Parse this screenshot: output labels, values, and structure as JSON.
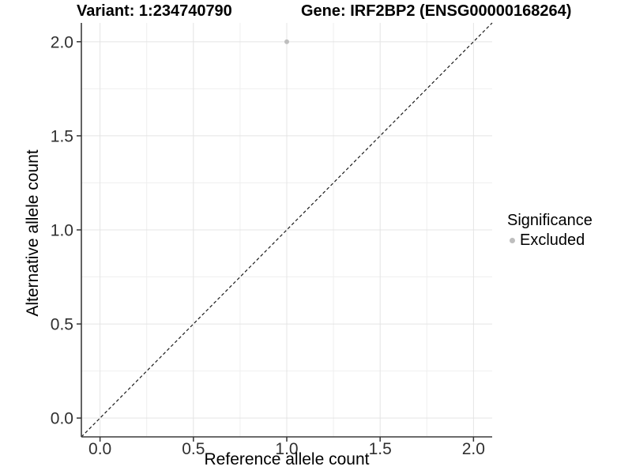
{
  "chart_data": {
    "type": "scatter",
    "title_left": "Variant: 1:234740790",
    "title_right": "Gene: IRF2BP2 (ENSG00000168264)",
    "xlabel": "Reference allele count",
    "ylabel": "Alternative allele count",
    "xlim": [
      -0.1,
      2.1
    ],
    "ylim": [
      -0.1,
      2.1
    ],
    "x_ticks": {
      "values": [
        0,
        0.5,
        1,
        1.5,
        2
      ],
      "labels": [
        "0.0",
        "0.5",
        "1.0",
        "1.5",
        "2.0"
      ]
    },
    "y_ticks": {
      "values": [
        0,
        0.5,
        1,
        1.5,
        2
      ],
      "labels": [
        "0.0",
        "0.5",
        "1.0",
        "1.5",
        "2.0"
      ]
    },
    "x_minor": [
      0.25,
      0.75,
      1.25,
      1.75
    ],
    "y_minor": [
      0.25,
      0.75,
      1.25,
      1.75
    ],
    "grid": "major+minor",
    "series": [
      {
        "name": "Excluded",
        "color": "#bebebe",
        "points": [
          {
            "x": 1.0,
            "y": 2.0
          }
        ]
      }
    ],
    "reference_line": {
      "type": "abline",
      "slope": 1,
      "intercept": 0,
      "style": "dashed",
      "color": "#1a1a1a"
    },
    "legend": {
      "title": "Significance",
      "position": "right",
      "entries": [
        {
          "label": "Excluded",
          "color": "#bebebe"
        }
      ]
    }
  },
  "colors": {
    "background": "#ffffff",
    "grid_major": "#e4e4e4",
    "grid_minor": "#efefef",
    "axis_line": "#3c3c3c",
    "tick_mark": "#333333",
    "tick_label": "#303030",
    "point": "#bebebe"
  }
}
